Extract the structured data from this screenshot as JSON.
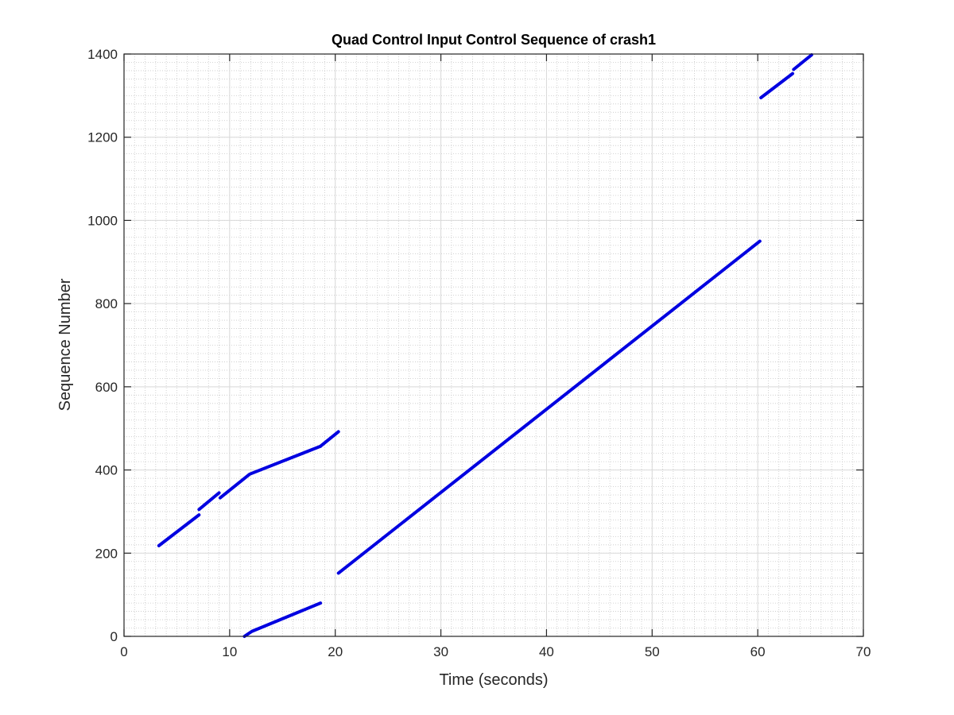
{
  "chart_data": {
    "type": "line",
    "title": "Quad Control Input Control Sequence of crash1",
    "xlabel": "Time (seconds)",
    "ylabel": "Sequence Number",
    "xlim": [
      0,
      70
    ],
    "ylim": [
      0,
      1400
    ],
    "xticks": [
      0,
      10,
      20,
      30,
      40,
      50,
      60,
      70
    ],
    "yticks": [
      0,
      200,
      400,
      600,
      800,
      1000,
      1200,
      1400
    ],
    "grid": true,
    "minor_grid": true,
    "line_color": "#0000e0",
    "segments": [
      [
        [
          3.3,
          218
        ],
        [
          7.1,
          292
        ]
      ],
      [
        [
          7.1,
          305
        ],
        [
          9.0,
          345
        ]
      ],
      [
        [
          9.1,
          333
        ],
        [
          11.9,
          390
        ],
        [
          18.6,
          457
        ]
      ],
      [
        [
          18.6,
          457
        ],
        [
          20.3,
          492
        ]
      ],
      [
        [
          11.4,
          0
        ],
        [
          12.1,
          12
        ],
        [
          18.6,
          80
        ]
      ],
      [
        [
          20.3,
          152
        ],
        [
          60.2,
          950
        ]
      ],
      [
        [
          60.3,
          1295
        ],
        [
          63.3,
          1353
        ]
      ],
      [
        [
          63.4,
          1363
        ],
        [
          65.1,
          1398
        ]
      ]
    ]
  }
}
